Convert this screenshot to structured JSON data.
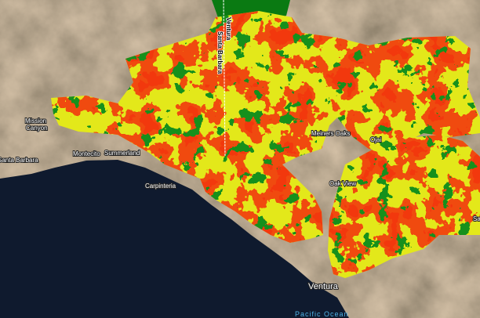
{
  "map": {
    "labels": [
      {
        "text": "Mission"
      },
      {
        "text": "Canyon"
      },
      {
        "text": "Santa Barbara"
      },
      {
        "text": "Montecito"
      },
      {
        "text": "Summerland"
      },
      {
        "text": "Carpinteria"
      },
      {
        "text": "Meiners Oaks"
      },
      {
        "text": "Ojai"
      },
      {
        "text": "Oak View"
      },
      {
        "text": "Ventura"
      },
      {
        "text": "Pacific Ocean"
      },
      {
        "text": "Sa"
      }
    ],
    "county_line_labels": [
      {
        "text": "Santa Barbara"
      },
      {
        "text": "Ventura"
      }
    ]
  }
}
